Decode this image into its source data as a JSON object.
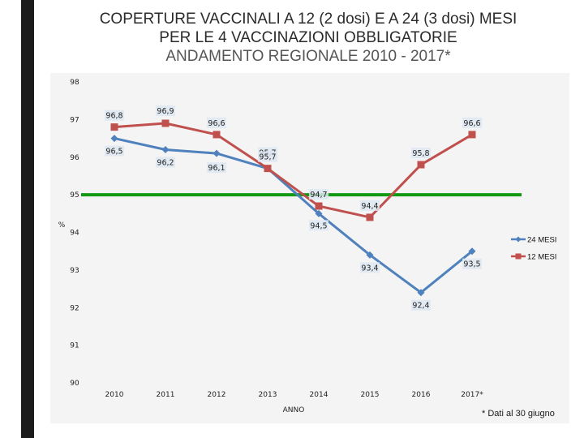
{
  "title": {
    "line1": "COPERTURE VACCINALI A 12 (2 dosi) E A 24 (3 dosi) MESI",
    "line2": "PER LE 4 VACCINAZIONI OBBLIGATORIE",
    "line3": "ANDAMENTO REGIONALE 2010 - 2017*"
  },
  "footnote": "* Dati al 30 giugno",
  "colors": {
    "series_24": "#4f81bd",
    "series_12": "#c0504d",
    "reference": "#139913",
    "left_bar": "#1c1c1c"
  },
  "chart_data": {
    "type": "line",
    "xlabel": "ANNO",
    "ylabel": "%",
    "categories": [
      "2010",
      "2011",
      "2012",
      "2013",
      "2014",
      "2015",
      "2016",
      "2017*"
    ],
    "ylim": [
      90,
      98
    ],
    "yticks": [
      "90",
      "91",
      "92",
      "93",
      "94",
      "95",
      "96",
      "97",
      "98"
    ],
    "reference_line": 95,
    "legend_position": "right",
    "series": [
      {
        "name": "24 MESI",
        "values": [
          96.5,
          96.2,
          96.1,
          95.7,
          94.5,
          93.4,
          92.4,
          93.5
        ],
        "labels": [
          "96,5",
          "96,2",
          "96,1",
          "95,7",
          "94,5",
          "93,4",
          "92,4",
          "93,5"
        ]
      },
      {
        "name": "12 MESI",
        "values": [
          96.8,
          96.9,
          96.6,
          95.7,
          94.7,
          94.4,
          95.8,
          96.6
        ],
        "labels": [
          "96,8",
          "96,9",
          "96,6",
          "95,7",
          "94,7",
          "94,4",
          "95,8",
          "96,6"
        ]
      }
    ]
  }
}
